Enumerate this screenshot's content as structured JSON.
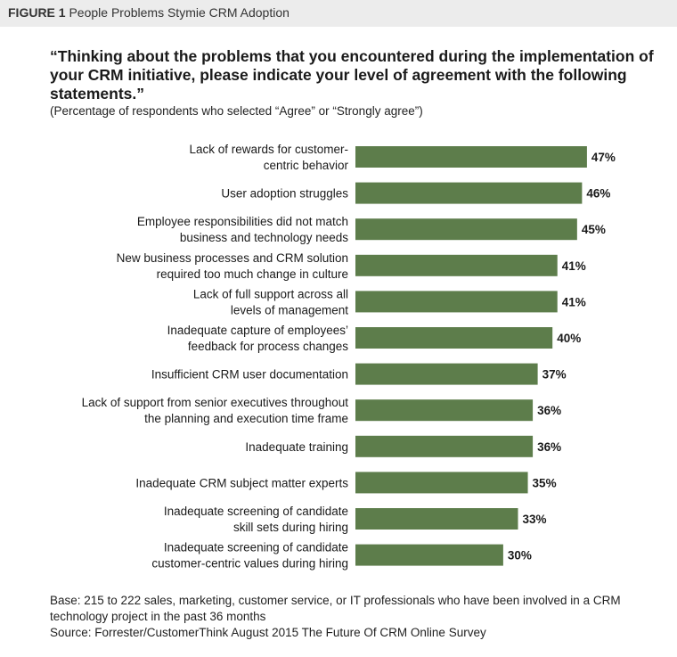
{
  "figure": {
    "label": "FIGURE 1",
    "title": "People Problems Stymie CRM Adoption"
  },
  "question": "“Thinking about the problems that you encountered during the implementation of your CRM initiative, please indicate your level of agreement with the following statements.”",
  "subnote": "(Percentage of respondents who selected “Agree” or “Strongly agree”)",
  "colors": {
    "bar": "#5d7d4b",
    "header_bg": "#ececec"
  },
  "chart_data": {
    "type": "bar",
    "orientation": "horizontal",
    "categories": [
      [
        "Lack of rewards for customer-",
        "centric behavior"
      ],
      [
        "User adoption struggles"
      ],
      [
        "Employee responsibilities did not match",
        "business and technology needs"
      ],
      [
        "New business processes and CRM solution",
        "required too much change in culture"
      ],
      [
        "Lack of full support across all",
        "levels of management"
      ],
      [
        "Inadequate capture of employees’",
        "feedback for process changes"
      ],
      [
        "Insufficient CRM user documentation"
      ],
      [
        "Lack of support from senior executives throughout",
        "the planning and execution time frame"
      ],
      [
        "Inadequate training"
      ],
      [
        "Inadequate CRM subject matter experts"
      ],
      [
        "Inadequate screening of candidate",
        "skill sets during hiring"
      ],
      [
        "Inadequate screening of candidate",
        "customer-centric values during hiring"
      ]
    ],
    "values": [
      47,
      46,
      45,
      41,
      41,
      40,
      37,
      36,
      36,
      35,
      33,
      30
    ],
    "value_labels": [
      "47%",
      "46%",
      "45%",
      "41%",
      "41%",
      "40%",
      "37%",
      "36%",
      "36%",
      "35%",
      "33%",
      "30%"
    ],
    "grid": false,
    "legend": false
  },
  "footer": {
    "base": "Base: 215 to 222 sales, marketing, customer service, or IT professionals who have been involved in a CRM technology project in the past 36 months",
    "source": "Source: Forrester/CustomerThink August 2015 The Future Of CRM Online Survey"
  }
}
